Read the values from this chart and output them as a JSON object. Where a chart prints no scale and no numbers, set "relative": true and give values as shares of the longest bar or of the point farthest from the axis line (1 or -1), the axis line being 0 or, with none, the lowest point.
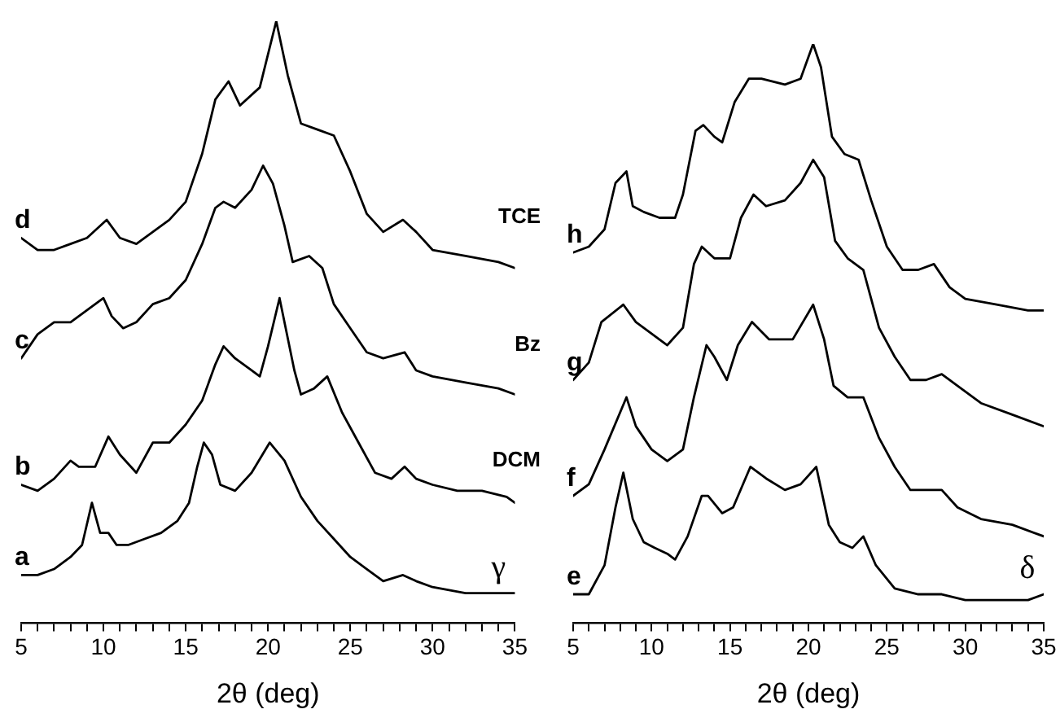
{
  "chart_data": [
    {
      "type": "line",
      "xlabel": "2θ (deg)",
      "relative": true,
      "xlim": [
        5,
        35
      ],
      "xticks": [
        5,
        {
          "value": 6,
          "label": null
        },
        {
          "value": 7,
          "label": null
        },
        {
          "value": 8,
          "label": null
        },
        {
          "value": 9,
          "label": null
        },
        10,
        {
          "value": 11,
          "label": null
        },
        {
          "value": 12,
          "label": null
        },
        {
          "value": 13,
          "label": null
        },
        {
          "value": 14,
          "label": null
        },
        15,
        {
          "value": 16,
          "label": null
        },
        {
          "value": 17,
          "label": null
        },
        {
          "value": 18,
          "label": null
        },
        {
          "value": 19,
          "label": null
        },
        20,
        {
          "value": 21,
          "label": null
        },
        {
          "value": 22,
          "label": null
        },
        {
          "value": 23,
          "label": null
        },
        {
          "value": 24,
          "label": null
        },
        25,
        {
          "value": 26,
          "label": null
        },
        {
          "value": 27,
          "label": null
        },
        {
          "value": 28,
          "label": null
        },
        {
          "value": 29,
          "label": null
        },
        30,
        {
          "value": 31,
          "label": null
        },
        {
          "value": 32,
          "label": null
        },
        {
          "value": 33,
          "label": null
        },
        {
          "value": 34,
          "label": null
        },
        35
      ],
      "grid": false,
      "legend": false,
      "marker": "none",
      "line_style": "solid",
      "tick_labels": "x",
      "annotations": [
        "γ"
      ],
      "series": [
        {
          "name": "a",
          "color": "#000000",
          "x": [
            5,
            6,
            7,
            8,
            8.7,
            9.3,
            9.8,
            10.3,
            10.8,
            11.5,
            12.5,
            13.5,
            14.5,
            15.2,
            15.7,
            16.1,
            16.6,
            17.1,
            18,
            19,
            20.1,
            21,
            22,
            23,
            24,
            25,
            26,
            27,
            28.2,
            29,
            30,
            32,
            34,
            35
          ],
          "values": [
            0.08,
            0.08,
            0.09,
            0.11,
            0.13,
            0.2,
            0.15,
            0.15,
            0.13,
            0.13,
            0.14,
            0.15,
            0.17,
            0.2,
            0.26,
            0.3,
            0.28,
            0.23,
            0.22,
            0.25,
            0.3,
            0.27,
            0.21,
            0.17,
            0.14,
            0.11,
            0.09,
            0.07,
            0.08,
            0.07,
            0.06,
            0.05,
            0.05,
            0.05
          ]
        },
        {
          "name": "b",
          "color": "#000000",
          "x": [
            5,
            6,
            7,
            8,
            8.5,
            9.5,
            10.3,
            11,
            12,
            13,
            14,
            15,
            16,
            16.8,
            17.3,
            18,
            19,
            19.5,
            20,
            20.7,
            21.6,
            22,
            22.8,
            23.6,
            24.5,
            25.5,
            26.5,
            27.5,
            28.3,
            29,
            30,
            31.5,
            33,
            34.5,
            35
          ],
          "values": [
            0.23,
            0.22,
            0.24,
            0.27,
            0.26,
            0.26,
            0.31,
            0.28,
            0.25,
            0.3,
            0.3,
            0.33,
            0.37,
            0.43,
            0.46,
            0.44,
            0.42,
            0.41,
            0.46,
            0.54,
            0.42,
            0.38,
            0.39,
            0.41,
            0.35,
            0.3,
            0.25,
            0.24,
            0.26,
            0.24,
            0.23,
            0.22,
            0.22,
            0.21,
            0.2
          ]
        },
        {
          "name": "c",
          "color": "#000000",
          "x": [
            5,
            6,
            7,
            8,
            10,
            10.5,
            11.2,
            12,
            13,
            14,
            15,
            16,
            16.8,
            17.3,
            18,
            19,
            19.7,
            20.3,
            21,
            21.5,
            22.5,
            23.3,
            24,
            25,
            26,
            27,
            28.3,
            29,
            30,
            32,
            34,
            35
          ],
          "values": [
            0.44,
            0.48,
            0.5,
            0.5,
            0.54,
            0.51,
            0.49,
            0.5,
            0.53,
            0.54,
            0.57,
            0.63,
            0.69,
            0.7,
            0.69,
            0.72,
            0.76,
            0.73,
            0.66,
            0.6,
            0.61,
            0.59,
            0.53,
            0.49,
            0.45,
            0.44,
            0.45,
            0.42,
            0.41,
            0.4,
            0.39,
            0.38
          ]
        },
        {
          "name": "d",
          "color": "#000000",
          "x": [
            5,
            6,
            7,
            8,
            9,
            10.2,
            11,
            12,
            13,
            14,
            15,
            16,
            16.8,
            17.6,
            18.3,
            19.5,
            20.5,
            21.2,
            22,
            23,
            24,
            25,
            26,
            27,
            28.2,
            29,
            30,
            32,
            34,
            35
          ],
          "values": [
            0.64,
            0.62,
            0.62,
            0.63,
            0.64,
            0.67,
            0.64,
            0.63,
            0.65,
            0.67,
            0.7,
            0.78,
            0.87,
            0.9,
            0.86,
            0.89,
            1,
            0.91,
            0.83,
            0.82,
            0.81,
            0.75,
            0.68,
            0.65,
            0.67,
            0.65,
            0.62,
            0.61,
            0.6,
            0.59
          ]
        }
      ]
    },
    {
      "type": "line",
      "xlabel": "2θ (deg)",
      "relative": true,
      "xlim": [
        5,
        35
      ],
      "xticks": [
        5,
        {
          "value": 6,
          "label": null
        },
        {
          "value": 7,
          "label": null
        },
        {
          "value": 8,
          "label": null
        },
        {
          "value": 9,
          "label": null
        },
        10,
        {
          "value": 11,
          "label": null
        },
        {
          "value": 12,
          "label": null
        },
        {
          "value": 13,
          "label": null
        },
        {
          "value": 14,
          "label": null
        },
        15,
        {
          "value": 16,
          "label": null
        },
        {
          "value": 17,
          "label": null
        },
        {
          "value": 18,
          "label": null
        },
        {
          "value": 19,
          "label": null
        },
        20,
        {
          "value": 21,
          "label": null
        },
        {
          "value": 22,
          "label": null
        },
        {
          "value": 23,
          "label": null
        },
        {
          "value": 24,
          "label": null
        },
        25,
        {
          "value": 26,
          "label": null
        },
        {
          "value": 27,
          "label": null
        },
        {
          "value": 28,
          "label": null
        },
        {
          "value": 29,
          "label": null
        },
        30,
        {
          "value": 31,
          "label": null
        },
        {
          "value": 32,
          "label": null
        },
        {
          "value": 33,
          "label": null
        },
        {
          "value": 34,
          "label": null
        },
        35
      ],
      "grid": false,
      "legend": false,
      "marker": "none",
      "line_style": "solid",
      "tick_labels": "x",
      "annotations": [
        "TCE",
        "Bz",
        "DCM",
        "δ"
      ],
      "series": [
        {
          "name": "e",
          "color": "#000000",
          "x": [
            5,
            6,
            7,
            7.7,
            8.2,
            8.8,
            9.5,
            10.2,
            11,
            11.5,
            12.3,
            13.2,
            13.6,
            14.5,
            15.2,
            16.3,
            17.3,
            18.5,
            19.5,
            20.5,
            21.3,
            22,
            22.8,
            23.5,
            24.3,
            25.5,
            27,
            28.5,
            30,
            32,
            34,
            35
          ],
          "values": [
            0.05,
            0.05,
            0.1,
            0.2,
            0.26,
            0.18,
            0.14,
            0.13,
            0.12,
            0.11,
            0.15,
            0.22,
            0.22,
            0.19,
            0.2,
            0.27,
            0.25,
            0.23,
            0.24,
            0.27,
            0.17,
            0.14,
            0.13,
            0.15,
            0.1,
            0.06,
            0.05,
            0.05,
            0.04,
            0.04,
            0.04,
            0.05
          ]
        },
        {
          "name": "f",
          "color": "#000000",
          "x": [
            5,
            6,
            7,
            8.4,
            9,
            10,
            11,
            12,
            12.7,
            13.5,
            14,
            14.8,
            15.5,
            16.4,
            17.5,
            19,
            20.3,
            21,
            21.6,
            22.5,
            23.5,
            24.5,
            25.5,
            26.5,
            28.5,
            29.5,
            31,
            33,
            35
          ],
          "values": [
            0.22,
            0.24,
            0.3,
            0.39,
            0.34,
            0.3,
            0.28,
            0.3,
            0.39,
            0.48,
            0.46,
            0.42,
            0.48,
            0.52,
            0.49,
            0.49,
            0.55,
            0.49,
            0.41,
            0.39,
            0.39,
            0.32,
            0.27,
            0.23,
            0.23,
            0.2,
            0.18,
            0.17,
            0.15
          ]
        },
        {
          "name": "g",
          "color": "#000000",
          "x": [
            5,
            6,
            6.8,
            8.2,
            9,
            10,
            11,
            12,
            12.7,
            13.2,
            14,
            15,
            15.7,
            16.5,
            17.3,
            18.5,
            19.5,
            20.3,
            21,
            21.7,
            22.5,
            23.5,
            24.5,
            25.5,
            26.5,
            27.5,
            28.5,
            29.5,
            31,
            33,
            35
          ],
          "values": [
            0.42,
            0.45,
            0.52,
            0.55,
            0.52,
            0.5,
            0.48,
            0.51,
            0.62,
            0.65,
            0.63,
            0.63,
            0.7,
            0.74,
            0.72,
            0.73,
            0.76,
            0.8,
            0.77,
            0.66,
            0.63,
            0.61,
            0.51,
            0.46,
            0.42,
            0.42,
            0.43,
            0.41,
            0.38,
            0.36,
            0.34
          ]
        },
        {
          "name": "h",
          "color": "#000000",
          "x": [
            5,
            6,
            7,
            7.7,
            8.4,
            8.8,
            9.5,
            10.5,
            11.5,
            12,
            12.8,
            13.3,
            14,
            14.5,
            15.3,
            16.2,
            17,
            18.5,
            19.5,
            20.3,
            20.8,
            21.5,
            22.3,
            23.2,
            24,
            25,
            26,
            27,
            28,
            29,
            30,
            32,
            34,
            35
          ],
          "values": [
            0.64,
            0.65,
            0.68,
            0.76,
            0.78,
            0.72,
            0.71,
            0.7,
            0.7,
            0.74,
            0.85,
            0.86,
            0.84,
            0.83,
            0.9,
            0.94,
            0.94,
            0.93,
            0.94,
            1,
            0.96,
            0.84,
            0.81,
            0.8,
            0.73,
            0.65,
            0.61,
            0.61,
            0.62,
            0.58,
            0.56,
            0.55,
            0.54,
            0.54
          ]
        }
      ]
    }
  ]
}
